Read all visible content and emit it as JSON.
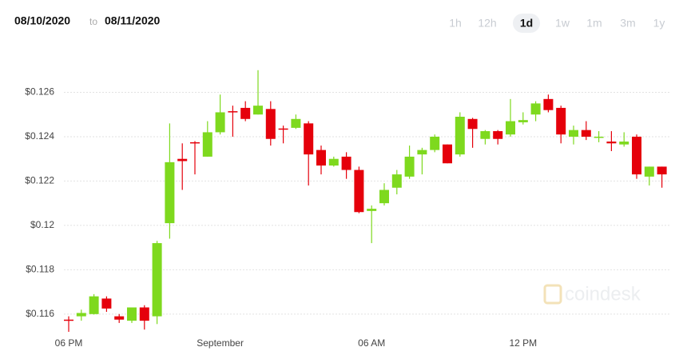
{
  "header": {
    "from": "08/10/2020",
    "to_word": "to",
    "to": "08/11/2020"
  },
  "range_buttons": [
    "1h",
    "12h",
    "1d",
    "1w",
    "1m",
    "3m",
    "1y"
  ],
  "selected_range": "1d",
  "watermark": "coindesk",
  "chart_data": {
    "type": "candlestick",
    "up_color": "#7ed91e",
    "down_color": "#e5000b",
    "grid": true,
    "categories": [
      "06 PM",
      null,
      null,
      null,
      null,
      null,
      null,
      null,
      null,
      null,
      null,
      null,
      "September",
      null,
      null,
      null,
      null,
      null,
      null,
      null,
      null,
      null,
      null,
      null,
      "06 AM",
      null,
      null,
      null,
      null,
      null,
      null,
      null,
      null,
      null,
      null,
      null,
      "12 PM",
      null,
      null,
      null,
      null,
      null,
      null,
      null,
      null,
      null,
      null,
      null
    ],
    "open": [
      0.11575,
      0.1159,
      0.116,
      0.1167,
      0.1159,
      0.1157,
      0.1163,
      0.1159,
      0.1201,
      0.123,
      0.12375,
      0.1231,
      0.1242,
      0.12515,
      0.1253,
      0.125,
      0.12525,
      0.12437,
      0.1244,
      0.1246,
      0.1234,
      0.1227,
      0.1231,
      0.1225,
      0.12065,
      0.121,
      0.1217,
      0.1222,
      0.1232,
      0.1234,
      0.12365,
      0.1232,
      0.1248,
      0.1239,
      0.12425,
      0.1241,
      0.12465,
      0.125,
      0.1257,
      0.1253,
      0.124,
      0.1243,
      0.12395,
      0.12378,
      0.12365,
      0.124,
      0.1222,
      0.12265
    ],
    "high": [
      0.1159,
      0.1162,
      0.1169,
      0.1168,
      0.116,
      0.1163,
      0.1164,
      0.1193,
      0.1246,
      0.1237,
      0.1238,
      0.1247,
      0.1259,
      0.1254,
      0.1256,
      0.127,
      0.1256,
      0.1245,
      0.125,
      0.1247,
      0.1236,
      0.1231,
      0.1233,
      0.12265,
      0.1209,
      0.1219,
      0.1225,
      0.1236,
      0.1235,
      0.1241,
      0.12365,
      0.1251,
      0.12485,
      0.1243,
      0.1243,
      0.1257,
      0.1251,
      0.1256,
      0.1259,
      0.1254,
      0.1245,
      0.1247,
      0.12425,
      0.12425,
      0.1242,
      0.1241,
      0.12265,
      0.12265
    ],
    "low": [
      0.1152,
      0.1157,
      0.11598,
      0.1161,
      0.1156,
      0.1156,
      0.1153,
      0.11555,
      0.1194,
      0.1216,
      0.1223,
      0.1231,
      0.1241,
      0.124,
      0.1247,
      0.125,
      0.1236,
      0.1237,
      0.12435,
      0.1218,
      0.1223,
      0.12265,
      0.1221,
      0.12055,
      0.1192,
      0.1209,
      0.1214,
      0.1221,
      0.1223,
      0.1233,
      0.1228,
      0.1231,
      0.1235,
      0.12365,
      0.12365,
      0.124,
      0.12455,
      0.1247,
      0.1251,
      0.1237,
      0.12365,
      0.12385,
      0.12375,
      0.12335,
      0.12355,
      0.1221,
      0.1218,
      0.1217
    ],
    "close": [
      0.11573,
      0.11605,
      0.1168,
      0.11625,
      0.11575,
      0.1163,
      0.1157,
      0.1192,
      0.12285,
      0.1229,
      0.1237,
      0.1242,
      0.1251,
      0.1251,
      0.1248,
      0.1254,
      0.1239,
      0.12435,
      0.1248,
      0.1232,
      0.1227,
      0.123,
      0.1225,
      0.1206,
      0.12075,
      0.1216,
      0.1223,
      0.1231,
      0.1234,
      0.124,
      0.1228,
      0.1249,
      0.12435,
      0.12425,
      0.1239,
      0.1247,
      0.12475,
      0.1255,
      0.1252,
      0.1241,
      0.1243,
      0.124,
      0.124,
      0.1237,
      0.12378,
      0.1223,
      0.12265,
      0.1223
    ],
    "ylim": [
      0.1152,
      0.1271
    ],
    "yticks": [
      {
        "value": 0.116,
        "label": "$0.116"
      },
      {
        "value": 0.118,
        "label": "$0.118"
      },
      {
        "value": 0.12,
        "label": "$0.12"
      },
      {
        "value": 0.122,
        "label": "$0.122"
      },
      {
        "value": 0.124,
        "label": "$0.124"
      },
      {
        "value": 0.126,
        "label": "$0.126"
      }
    ]
  }
}
